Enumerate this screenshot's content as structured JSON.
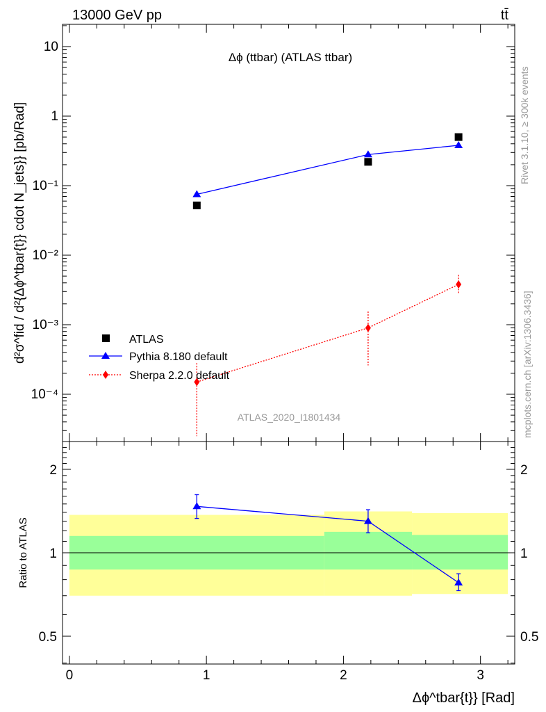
{
  "header": {
    "energy_label": "13000 GeV pp",
    "process_label": "tt̄"
  },
  "side_labels": {
    "rivet": "Rivet 3.1.10, ≥ 300k events",
    "mcplots": "mcplots.cern.ch [arXiv:1306.3436]"
  },
  "chart_data": [
    {
      "type": "scatter",
      "panel": "main",
      "title": "Δϕ (ttbar) (ATLAS ttbar)",
      "watermark": "ATLAS_2020_I1801434",
      "ylabel": "d²σ^fid / d²{Δϕ^tbar{t}} cdot N_jets}} [pb/Rad]",
      "y_scale": "log",
      "xlim": [
        -0.05,
        3.25
      ],
      "ylim": [
        2.5e-05,
        20
      ],
      "y_tick_labels": [
        "10⁻⁴",
        "10⁻³",
        "10⁻²",
        "10⁻¹",
        "1",
        "10"
      ],
      "legend_position": "center-left",
      "series": [
        {
          "name": "ATLAS",
          "color": "#000000",
          "marker": "square",
          "x": [
            0.93,
            2.18,
            2.84
          ],
          "y": [
            0.052,
            0.22,
            0.5
          ]
        },
        {
          "name": "Pythia 8.180 default",
          "color": "#0000ff",
          "marker": "triangle",
          "line": "solid",
          "x": [
            0.93,
            2.18,
            2.84
          ],
          "y": [
            0.075,
            0.28,
            0.38
          ],
          "yerr_low": [
            0.006,
            0.02,
            0.025
          ],
          "yerr_high": [
            0.006,
            0.02,
            0.025
          ]
        },
        {
          "name": "Sherpa 2.2.0 default",
          "color": "#ff0000",
          "marker": "diamond",
          "line": "dotted",
          "x": [
            0.93,
            2.18,
            2.84
          ],
          "y": [
            0.00015,
            0.0009,
            0.0038
          ],
          "y_low": [
            2.5e-05,
            0.00026,
            0.0028
          ],
          "y_high": [
            0.00028,
            0.00155,
            0.0052
          ]
        }
      ]
    },
    {
      "type": "scatter",
      "panel": "ratio",
      "xlabel": "Δϕ^tbar{t}} [Rad]",
      "ylabel": "Ratio to ATLAS",
      "y_scale": "log",
      "xlim": [
        -0.05,
        3.25
      ],
      "ylim": [
        0.4,
        2.4
      ],
      "x_ticks": [
        0,
        1,
        2,
        3
      ],
      "y_tick_labels": [
        "0.5",
        "1",
        "2"
      ],
      "bands": [
        {
          "x0": 0.0,
          "x1": 1.86,
          "inner_low": 0.87,
          "inner_high": 1.15,
          "outer_low": 0.7,
          "outer_high": 1.37
        },
        {
          "x0": 1.86,
          "x1": 2.5,
          "inner_low": 0.87,
          "inner_high": 1.19,
          "outer_low": 0.7,
          "outer_high": 1.41
        },
        {
          "x0": 2.5,
          "x1": 3.2,
          "inner_low": 0.87,
          "inner_high": 1.16,
          "outer_low": 0.71,
          "outer_high": 1.39
        }
      ],
      "band_colors": {
        "inner": "#99ff99",
        "outer": "#ffff99"
      },
      "reference_line": 1,
      "series": [
        {
          "name": "Pythia 8.180 default",
          "color": "#0000ff",
          "x": [
            0.93,
            2.18,
            2.84
          ],
          "y": [
            1.47,
            1.3,
            0.78
          ],
          "y_low": [
            1.33,
            1.18,
            0.73
          ],
          "y_high": [
            1.62,
            1.43,
            0.84
          ]
        }
      ]
    }
  ]
}
